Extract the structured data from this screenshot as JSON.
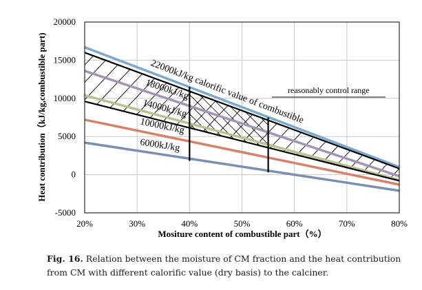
{
  "chart_data": {
    "type": "line",
    "xlabel": "Mositure content of combustible part（%）",
    "ylabel": "Heat contribution（kJ/kg,combustible part)",
    "x": [
      20,
      30,
      40,
      50,
      60,
      70,
      80
    ],
    "x_tick_labels": [
      "20%",
      "30%",
      "40%",
      "50%",
      "60%",
      "70%",
      "80%"
    ],
    "xlim": [
      20,
      80
    ],
    "ylim": [
      -5000,
      20000
    ],
    "y_ticks": [
      -5000,
      0,
      5000,
      10000,
      15000,
      20000
    ],
    "y_tick_labels": [
      "-5000",
      "0",
      "5000",
      "10000",
      "15000",
      "20000"
    ],
    "grid": true,
    "series": [
      {
        "name": "22000kJ/kg calorific value of combustible",
        "color": "#7ba9cc",
        "x": [
          20,
          80
        ],
        "y": [
          16700,
          1000
        ]
      },
      {
        "name": "18000kJ/kg",
        "color": "#a593b2",
        "x": [
          20,
          80
        ],
        "y": [
          13600,
          -200
        ]
      },
      {
        "name": "14000kJ/kg",
        "color": "#b9c28f",
        "x": [
          20,
          80
        ],
        "y": [
          10400,
          -700
        ]
      },
      {
        "name": "10000kJ/kg",
        "color": "#d4826a",
        "x": [
          20,
          80
        ],
        "y": [
          7200,
          -1300
        ]
      },
      {
        "name": "6000kJ/kg",
        "color": "#7b90b0",
        "x": [
          20,
          80
        ],
        "y": [
          4200,
          -2100
        ]
      }
    ],
    "bounds": {
      "upper": {
        "x": [
          20,
          80
        ],
        "y": [
          16000,
          800
        ]
      },
      "lower": {
        "x": [
          20,
          80
        ],
        "y": [
          9600,
          -800
        ]
      }
    },
    "control_range": {
      "x": [
        40,
        55
      ],
      "label": "reasonably control range"
    },
    "verticals": [
      {
        "x": 40,
        "y_top": 11500,
        "y_bottom": 1800
      },
      {
        "x": 55,
        "y_top": 7500,
        "y_bottom": 300
      }
    ]
  },
  "caption": {
    "fig_ref": "Fig. 16.",
    "text": " Relation between the moisture of CM fraction and the heat contribution from CM with different calorific value (dry basis) to the calciner."
  }
}
